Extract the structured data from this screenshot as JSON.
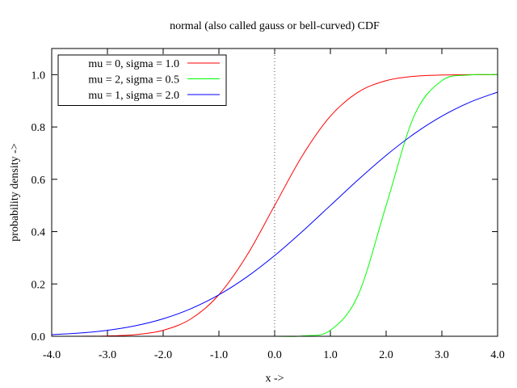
{
  "chart_data": {
    "type": "line",
    "title": "normal (also called gauss or bell-curved) CDF",
    "xlabel": "x ->",
    "ylabel": "probability density ->",
    "xlim": [
      -4.0,
      4.0
    ],
    "ylim": [
      0.0,
      1.1
    ],
    "x_ticks": [
      -4.0,
      -3.0,
      -2.0,
      -1.0,
      0.0,
      1.0,
      2.0,
      3.0,
      4.0
    ],
    "x_tick_labels": [
      "-4.0",
      "-3.0",
      "-2.0",
      "-1.0",
      "0.0",
      "1.0",
      "2.0",
      "3.0",
      "4.0"
    ],
    "y_ticks": [
      0.0,
      0.2,
      0.4,
      0.6,
      0.8,
      1.0
    ],
    "y_tick_labels": [
      "0.0",
      "0.2",
      "0.4",
      "0.6",
      "0.8",
      "1.0"
    ],
    "zero_line_x": 0.0,
    "legend_position": "top-left",
    "x": [
      -4.0,
      -3.5,
      -3.0,
      -2.5,
      -2.0,
      -1.5,
      -1.0,
      -0.5,
      0.0,
      0.5,
      1.0,
      1.5,
      2.0,
      2.5,
      3.0,
      3.5,
      4.0
    ],
    "series": [
      {
        "name": "mu = 0, sigma = 1.0",
        "color": "#ff0000",
        "values": [
          0.0,
          0.0002,
          0.0013,
          0.0062,
          0.0228,
          0.0668,
          0.1587,
          0.3085,
          0.5,
          0.6915,
          0.8413,
          0.9332,
          0.9772,
          0.9938,
          0.9987,
          0.9998,
          1.0
        ]
      },
      {
        "name": "mu = 2, sigma = 0.5",
        "color": "#00ff00",
        "values": [
          0.0,
          0.0,
          0.0,
          0.0,
          0.0,
          0.0,
          0.0,
          0.0,
          0.0,
          0.0013,
          0.0228,
          0.1587,
          0.5,
          0.8413,
          0.9772,
          0.9987,
          1.0
        ]
      },
      {
        "name": "mu = 1, sigma = 2.0",
        "color": "#0000ff",
        "values": [
          0.0062,
          0.0122,
          0.0228,
          0.0401,
          0.0668,
          0.1056,
          0.1587,
          0.2266,
          0.3085,
          0.4013,
          0.5,
          0.5987,
          0.6915,
          0.7734,
          0.8413,
          0.8944,
          0.9332
        ]
      }
    ]
  }
}
